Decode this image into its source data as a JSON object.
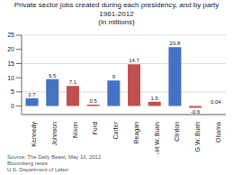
{
  "chart_data": {
    "type": "bar",
    "title": "Private sector jobs created during each presidency, and by party\n1961-2012\n(in millions)",
    "categories": [
      "Kennedy",
      "Johnson",
      "Nixon",
      "Ford",
      "Carter",
      "Reagan",
      "G.H.W. Bush",
      "Clinton",
      "G.W. Bush",
      "Obama"
    ],
    "values": [
      2.7,
      9.5,
      7.1,
      0.5,
      9.0,
      14.7,
      1.5,
      20.8,
      -0.6,
      0.04
    ],
    "colors": [
      "#4472c4",
      "#4472c4",
      "#c0504d",
      "#c0504d",
      "#4472c4",
      "#c0504d",
      "#c0504d",
      "#4472c4",
      "#c0504d",
      "#4472c4"
    ],
    "ylim": [
      -3,
      25
    ],
    "yticks": [
      0,
      5,
      10,
      15,
      20,
      25
    ],
    "grid": true,
    "data_labels": true,
    "annotations": [
      "Source: The Daily Beast, May 10, 2012",
      "Bloomberg news",
      "U.S. Department of Labor"
    ]
  }
}
